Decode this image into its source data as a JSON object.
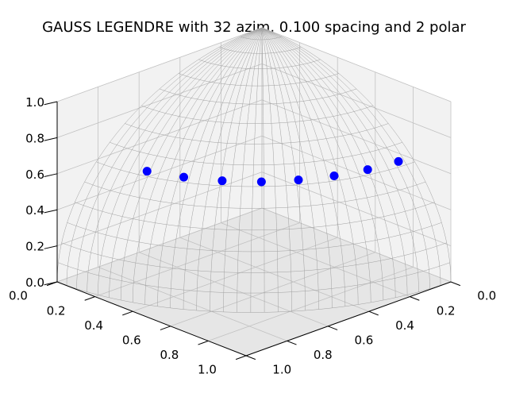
{
  "chart_data": {
    "type": "scatter",
    "projection": "3d",
    "title": "GAUSS LEGENDRE with 32 azim, 0.100 spacing and 2 polar",
    "xlabel": "",
    "ylabel": "",
    "zlabel": "",
    "xlim": [
      0,
      1
    ],
    "ylim": [
      0,
      1
    ],
    "zlim": [
      0,
      1
    ],
    "x_ticks": [
      "0.0",
      "0.2",
      "0.4",
      "0.6",
      "0.8",
      "1.0"
    ],
    "y_ticks": [
      "0.0",
      "0.2",
      "0.4",
      "0.6",
      "0.8",
      "1.0"
    ],
    "z_ticks": [
      "0.0",
      "0.2",
      "0.4",
      "0.6",
      "0.8",
      "1.0"
    ],
    "grid": true,
    "surface": "unit octant sphere wireframe",
    "marker_color": "#0000ff",
    "points": [
      {
        "x": 0.063,
        "y": 0.791,
        "z": 0.608
      },
      {
        "x": 0.194,
        "y": 0.77,
        "z": 0.608
      },
      {
        "x": 0.32,
        "y": 0.729,
        "z": 0.608
      },
      {
        "x": 0.437,
        "y": 0.667,
        "z": 0.608
      },
      {
        "x": 0.543,
        "y": 0.586,
        "z": 0.608
      },
      {
        "x": 0.636,
        "y": 0.479,
        "z": 0.608
      },
      {
        "x": 0.71,
        "y": 0.356,
        "z": 0.608
      },
      {
        "x": 0.765,
        "y": 0.221,
        "z": 0.608
      }
    ]
  }
}
